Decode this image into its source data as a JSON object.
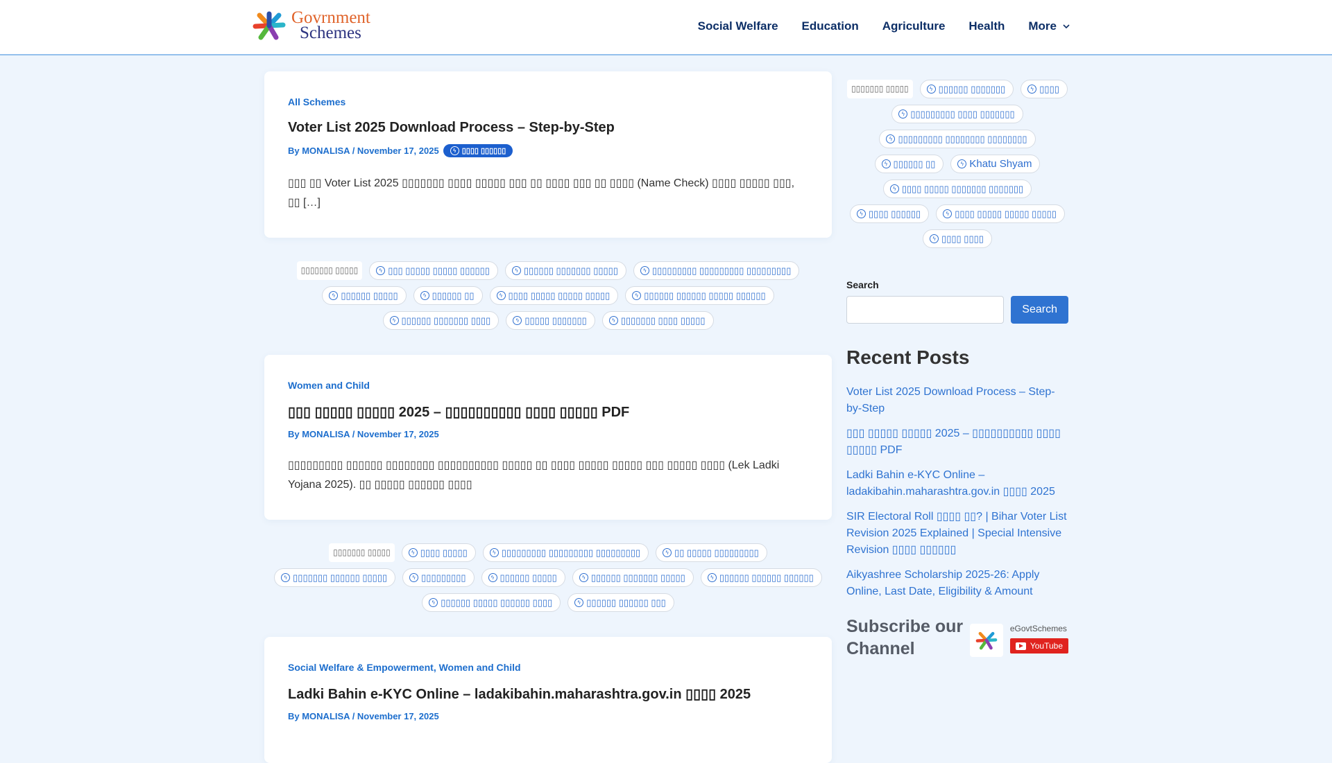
{
  "header": {
    "logo_line1": "Govrnment",
    "logo_line2": "Schemes",
    "nav": [
      {
        "label": "Social Welfare"
      },
      {
        "label": "Education"
      },
      {
        "label": "Agriculture"
      },
      {
        "label": "Health"
      },
      {
        "label": "More"
      }
    ]
  },
  "posts": [
    {
      "categories": [
        "All Schemes"
      ],
      "title": "Voter List 2025 Download Process – Step-by-Step",
      "meta": "By MONALISA / November 17, 2025",
      "badge": "▯▯▯▯ ▯▯▯▯▯▯",
      "excerpt": "▯▯▯ ▯▯ Voter List 2025 ▯▯▯▯▯▯▯ ▯▯▯▯ ▯▯▯▯▯ ▯▯▯ ▯▯ ▯▯▯▯ ▯▯▯ ▯▯ ▯▯▯▯ (Name Check) ▯▯▯▯ ▯▯▯▯▯ ▯▯▯, ▯▯ […]"
    },
    {
      "categories": [
        "Women and Child"
      ],
      "title": "▯▯▯ ▯▯▯▯▯ ▯▯▯▯▯ 2025 – ▯▯▯▯▯▯▯▯▯▯ ▯▯▯▯ ▯▯▯▯▯ PDF",
      "meta": "By MONALISA / November 17, 2025",
      "excerpt": "▯▯▯▯▯▯▯▯▯ ▯▯▯▯▯▯ ▯▯▯▯▯▯▯▯ ▯▯▯▯▯▯▯▯▯▯ ▯▯▯▯▯ ▯▯ ▯▯▯▯ ▯▯▯▯▯ ▯▯▯▯▯ ▯▯▯ ▯▯▯▯▯ ▯▯▯▯ (Lek Ladki Yojana 2025). ▯▯ ▯▯▯▯▯ ▯▯▯▯▯▯ ▯▯▯▯"
    },
    {
      "categories": [
        "Social Welfare & Empowerment",
        "Women and Child"
      ],
      "title": "Ladki Bahin e-KYC Online – ladakibahin.maharashtra.gov.in ▯▯▯▯ 2025",
      "meta": "By MONALISA / November 17, 2025"
    }
  ],
  "tag_blocks": [
    {
      "label": "▯▯▯▯▯▯▯ ▯▯▯▯▯",
      "tags": [
        "▯▯▯ ▯▯▯▯▯ ▯▯▯▯▯ ▯▯▯▯▯▯",
        "▯▯▯▯▯▯ ▯▯▯▯▯▯▯ ▯▯▯▯▯",
        "▯▯▯▯▯▯▯▯▯ ▯▯▯▯▯▯▯▯▯ ▯▯▯▯▯▯▯▯▯",
        "▯▯▯▯▯▯ ▯▯▯▯▯",
        "▯▯▯▯▯▯ ▯▯",
        "▯▯▯▯ ▯▯▯▯▯ ▯▯▯▯▯ ▯▯▯▯▯",
        "▯▯▯▯▯▯ ▯▯▯▯▯▯ ▯▯▯▯▯ ▯▯▯▯▯▯",
        "▯▯▯▯▯▯ ▯▯▯▯▯▯▯ ▯▯▯▯",
        "▯▯▯▯▯ ▯▯▯▯▯▯▯",
        "▯▯▯▯▯▯▯ ▯▯▯▯ ▯▯▯▯▯"
      ]
    },
    {
      "label": "▯▯▯▯▯▯▯ ▯▯▯▯▯",
      "tags": [
        "▯▯▯▯ ▯▯▯▯▯",
        "▯▯▯▯▯▯▯▯▯ ▯▯▯▯▯▯▯▯▯ ▯▯▯▯▯▯▯▯▯",
        "▯▯ ▯▯▯▯▯ ▯▯▯▯▯▯▯▯▯",
        "▯▯▯▯▯▯▯ ▯▯▯▯▯▯ ▯▯▯▯▯",
        "▯▯▯▯▯▯▯▯▯",
        "▯▯▯▯▯▯ ▯▯▯▯▯",
        "▯▯▯▯▯▯ ▯▯▯▯▯▯▯ ▯▯▯▯▯",
        "▯▯▯▯▯▯ ▯▯▯▯▯▯ ▯▯▯▯▯▯",
        "▯▯▯▯▯▯ ▯▯▯▯▯ ▯▯▯▯▯▯ ▯▯▯▯",
        "▯▯▯▯▯▯ ▯▯▯▯▯▯ ▯▯▯"
      ]
    }
  ],
  "sidebar": {
    "tag_cloud": {
      "label": "▯▯▯▯▯▯▯ ▯▯▯▯▯",
      "tags": [
        "▯▯▯▯▯▯ ▯▯▯▯▯▯▯",
        "▯▯▯▯",
        "▯▯▯▯▯▯▯▯▯ ▯▯▯▯ ▯▯▯▯▯▯▯",
        "▯▯▯▯▯▯▯▯▯ ▯▯▯▯▯▯▯▯ ▯▯▯▯▯▯▯▯",
        "▯▯▯▯▯▯ ▯▯",
        "Khatu Shyam",
        "▯▯▯▯ ▯▯▯▯▯ ▯▯▯▯▯▯▯ ▯▯▯▯▯▯▯",
        "▯▯▯▯ ▯▯▯▯▯▯",
        "▯▯▯▯ ▯▯▯▯▯ ▯▯▯▯▯ ▯▯▯▯▯",
        "▯▯▯▯ ▯▯▯▯"
      ]
    },
    "search_label": "Search",
    "search_value": "",
    "search_button": "Search",
    "recent_heading": "Recent Posts",
    "recent_posts": [
      "Voter List 2025 Download Process – Step-by-Step",
      "▯▯▯ ▯▯▯▯▯ ▯▯▯▯▯ 2025 – ▯▯▯▯▯▯▯▯▯▯ ▯▯▯▯ ▯▯▯▯▯ PDF",
      "Ladki Bahin e-KYC Online – ladakibahin.maharashtra.gov.in ▯▯▯▯ 2025",
      "SIR Electoral Roll ▯▯▯▯ ▯▯? | Bihar Voter List Revision 2025 Explained | Special Intensive Revision ▯▯▯▯ ▯▯▯▯▯▯",
      "Aikyashree Scholarship 2025-26: Apply Online, Last Date, Eligibility & Amount"
    ],
    "subscribe_heading": "Subscribe our Channel",
    "channel_name": "eGovtSchemes",
    "youtube_label": "YouTube"
  },
  "colors": {
    "accent": "#2f73d1",
    "nav": "#0c2e66",
    "background": "#eef5fd",
    "youtube": "#e0231e"
  }
}
